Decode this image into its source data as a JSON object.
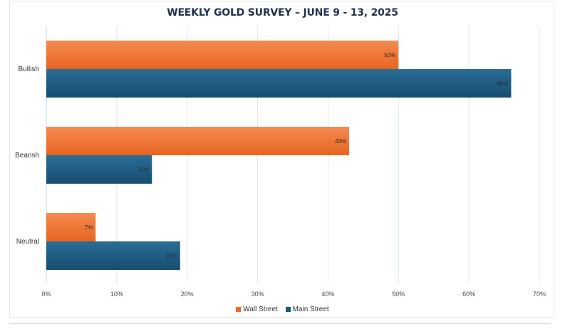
{
  "chart_data": {
    "type": "bar",
    "orientation": "horizontal",
    "title": "WEEKLY GOLD SURVEY – JUNE 9 - 13, 2025",
    "categories": [
      "Bullish",
      "Bearish",
      "Neutral"
    ],
    "series": [
      {
        "name": "Wall Street",
        "values": [
          50,
          43,
          7
        ],
        "labels": [
          "50%",
          "43%",
          "7%"
        ],
        "color": "#ec6a26"
      },
      {
        "name": "Main Street",
        "values": [
          66,
          15,
          19
        ],
        "labels": [
          "66%",
          "15%",
          "19%"
        ],
        "color": "#1c587e"
      }
    ],
    "xlim": [
      0,
      70
    ],
    "xticks": [
      0,
      10,
      20,
      30,
      40,
      50,
      60,
      70
    ],
    "xtick_labels": [
      "0%",
      "10%",
      "20%",
      "30%",
      "40%",
      "50%",
      "60%",
      "70%"
    ],
    "grid": true,
    "legend_position": "bottom"
  }
}
